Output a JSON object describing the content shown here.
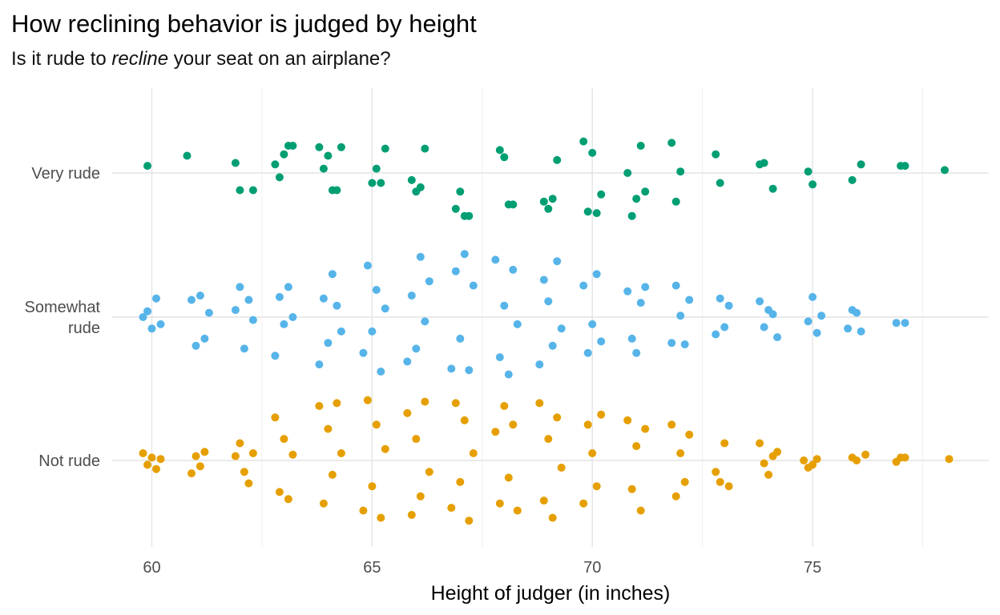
{
  "title": "How reclining behavior is judged by height",
  "subtitle": {
    "before": "Is it rude to ",
    "emph": "recline",
    "after": " your seat on an airplane?"
  },
  "colors": {
    "Very rude": "#009E73",
    "Somewhat rude": "#56B4E9",
    "Not rude": "#E69F00",
    "grid_major": "#e4e4e4",
    "grid_minor": "#f0f0f0"
  },
  "chart_data": {
    "type": "scatter",
    "style": "jitter",
    "xlabel": "Height of judger (in inches)",
    "ylabel": "",
    "xlim": [
      59.1,
      79.0
    ],
    "x_ticks": [
      60,
      65,
      70,
      75
    ],
    "x_tick_labels": [
      "60",
      "65",
      "70",
      "75"
    ],
    "categories": [
      "Not rude",
      "Somewhat rude",
      "Very rude"
    ],
    "category_labels": [
      [
        "Not rude"
      ],
      [
        "Somewhat",
        "rude"
      ],
      [
        "Very rude"
      ]
    ],
    "grid": true,
    "legend": "none",
    "series": [
      {
        "name": "Very rude",
        "x": [
          59.9,
          60.8,
          61.9,
          62.0,
          62.3,
          62.8,
          62.9,
          63.0,
          63.1,
          63.2,
          63.8,
          63.9,
          64.0,
          64.1,
          64.2,
          64.3,
          65.0,
          65.1,
          65.2,
          65.3,
          65.9,
          66.0,
          66.1,
          66.2,
          66.9,
          67.0,
          67.1,
          67.2,
          67.9,
          68.0,
          68.1,
          68.2,
          68.9,
          69.0,
          69.1,
          69.2,
          69.8,
          69.9,
          70.0,
          70.1,
          70.2,
          70.8,
          70.9,
          71.0,
          71.1,
          71.2,
          71.8,
          71.9,
          72.0,
          72.8,
          72.9,
          73.8,
          73.9,
          74.1,
          74.9,
          75.0,
          75.9,
          76.1,
          77.0,
          77.1,
          78.0
        ],
        "y": [
          0.05,
          0.12,
          0.07,
          -0.12,
          -0.12,
          0.06,
          -0.03,
          0.13,
          0.19,
          0.19,
          0.18,
          0.03,
          0.12,
          -0.12,
          -0.12,
          0.18,
          -0.07,
          0.03,
          -0.07,
          0.17,
          -0.05,
          -0.13,
          -0.1,
          0.17,
          -0.25,
          -0.13,
          -0.3,
          -0.3,
          0.16,
          0.11,
          -0.22,
          -0.22,
          -0.2,
          -0.25,
          -0.18,
          0.09,
          0.22,
          -0.27,
          0.14,
          -0.28,
          -0.15,
          0.0,
          -0.3,
          -0.18,
          0.19,
          -0.13,
          0.21,
          -0.2,
          0.01,
          0.13,
          -0.07,
          0.06,
          0.07,
          -0.11,
          0.01,
          -0.08,
          -0.05,
          0.06,
          0.05,
          0.05,
          0.02
        ]
      },
      {
        "name": "Somewhat rude",
        "x": [
          59.8,
          59.9,
          60.0,
          60.1,
          60.2,
          60.9,
          61.0,
          61.1,
          61.2,
          61.3,
          61.9,
          62.0,
          62.1,
          62.2,
          62.3,
          62.8,
          62.9,
          63.0,
          63.1,
          63.2,
          63.8,
          63.9,
          64.0,
          64.1,
          64.2,
          64.3,
          64.8,
          64.9,
          65.0,
          65.1,
          65.2,
          65.3,
          65.8,
          65.9,
          66.0,
          66.1,
          66.2,
          66.3,
          66.8,
          66.9,
          67.0,
          67.1,
          67.2,
          67.3,
          67.8,
          67.9,
          68.0,
          68.1,
          68.2,
          68.3,
          68.8,
          68.9,
          69.0,
          69.1,
          69.2,
          69.3,
          69.8,
          69.9,
          70.0,
          70.1,
          70.2,
          70.8,
          70.9,
          71.0,
          71.1,
          71.2,
          71.8,
          71.9,
          72.0,
          72.1,
          72.2,
          72.8,
          72.9,
          73.0,
          73.1,
          73.8,
          73.9,
          74.0,
          74.1,
          74.2,
          74.9,
          75.0,
          75.1,
          75.2,
          75.8,
          75.9,
          76.0,
          76.1,
          76.9,
          77.1
        ],
        "y": [
          0.0,
          0.04,
          -0.08,
          0.13,
          -0.05,
          0.12,
          -0.2,
          0.15,
          -0.15,
          0.03,
          0.05,
          0.21,
          -0.22,
          0.12,
          -0.02,
          -0.27,
          0.14,
          -0.05,
          0.21,
          0.0,
          -0.33,
          0.13,
          -0.18,
          0.3,
          0.08,
          -0.1,
          -0.25,
          0.36,
          -0.1,
          0.19,
          -0.38,
          0.06,
          -0.31,
          0.15,
          -0.22,
          0.42,
          -0.03,
          0.25,
          -0.36,
          0.32,
          -0.15,
          0.44,
          -0.37,
          0.22,
          0.4,
          -0.28,
          0.08,
          -0.4,
          0.33,
          -0.05,
          -0.33,
          0.26,
          0.11,
          -0.2,
          0.39,
          -0.08,
          0.22,
          -0.25,
          -0.05,
          0.3,
          -0.17,
          0.18,
          -0.15,
          -0.25,
          0.1,
          0.21,
          -0.18,
          0.22,
          0.01,
          -0.19,
          0.12,
          -0.12,
          0.13,
          -0.07,
          0.08,
          0.11,
          -0.07,
          0.05,
          0.02,
          -0.14,
          -0.03,
          0.14,
          -0.11,
          0.01,
          -0.08,
          0.05,
          0.03,
          -0.1,
          -0.04,
          -0.04
        ]
      },
      {
        "name": "Not rude",
        "x": [
          59.8,
          59.9,
          60.0,
          60.1,
          60.2,
          60.9,
          61.0,
          61.1,
          61.2,
          61.9,
          62.0,
          62.1,
          62.2,
          62.3,
          62.8,
          62.9,
          63.0,
          63.1,
          63.2,
          63.8,
          63.9,
          64.0,
          64.1,
          64.2,
          64.3,
          64.8,
          64.9,
          65.0,
          65.1,
          65.2,
          65.3,
          65.8,
          65.9,
          66.0,
          66.1,
          66.2,
          66.3,
          66.8,
          66.9,
          67.0,
          67.1,
          67.2,
          67.3,
          67.8,
          67.9,
          68.0,
          68.1,
          68.2,
          68.3,
          68.8,
          68.9,
          69.0,
          69.1,
          69.2,
          69.3,
          69.8,
          69.9,
          70.0,
          70.1,
          70.2,
          70.8,
          70.9,
          71.0,
          71.1,
          71.2,
          71.8,
          71.9,
          72.0,
          72.1,
          72.2,
          72.8,
          72.9,
          73.0,
          73.1,
          73.8,
          73.9,
          74.0,
          74.1,
          74.2,
          74.8,
          74.9,
          75.0,
          75.1,
          75.9,
          76.0,
          76.2,
          76.9,
          77.0,
          77.1,
          78.1
        ],
        "y": [
          0.05,
          -0.03,
          0.02,
          -0.06,
          0.01,
          -0.09,
          0.03,
          -0.04,
          0.06,
          0.03,
          0.12,
          -0.08,
          -0.16,
          0.05,
          0.3,
          -0.22,
          0.15,
          -0.27,
          0.04,
          0.38,
          -0.3,
          0.22,
          -0.1,
          0.4,
          0.05,
          -0.35,
          0.42,
          -0.18,
          0.25,
          -0.4,
          0.08,
          0.33,
          -0.38,
          0.15,
          -0.25,
          0.41,
          -0.08,
          -0.33,
          0.4,
          -0.15,
          0.28,
          -0.42,
          0.05,
          0.2,
          -0.3,
          0.38,
          -0.12,
          0.25,
          -0.35,
          0.4,
          -0.28,
          0.15,
          -0.4,
          0.3,
          -0.05,
          -0.3,
          0.25,
          0.05,
          -0.18,
          0.32,
          0.28,
          -0.2,
          0.1,
          -0.35,
          0.22,
          0.25,
          -0.25,
          0.05,
          -0.15,
          0.18,
          -0.08,
          -0.15,
          0.12,
          -0.18,
          0.12,
          -0.02,
          -0.1,
          0.03,
          0.06,
          0.0,
          -0.05,
          -0.03,
          0.01,
          0.02,
          0.0,
          0.04,
          -0.01,
          0.02,
          0.02,
          0.01
        ]
      }
    ]
  }
}
